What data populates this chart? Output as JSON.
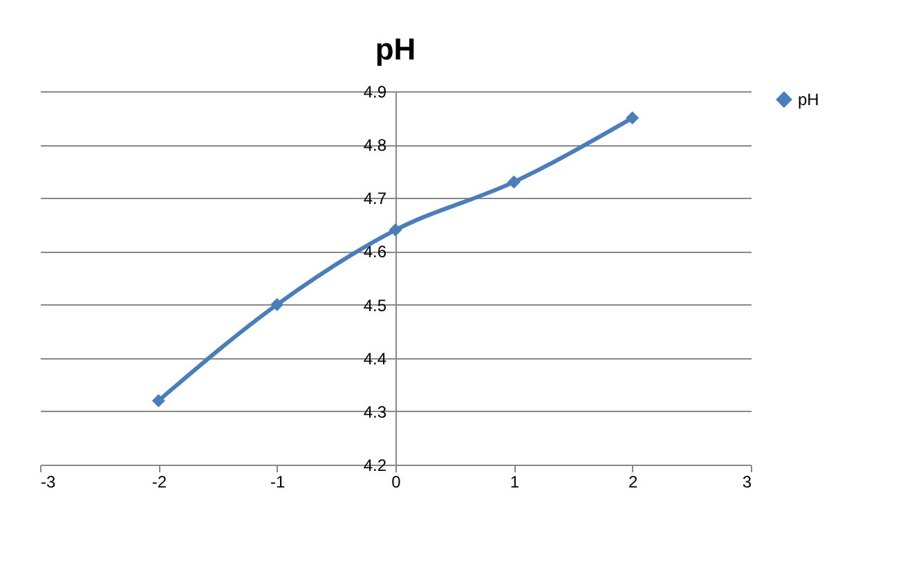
{
  "chart_data": {
    "type": "line",
    "title": "pH",
    "x": [
      -2,
      -1,
      0,
      1,
      2
    ],
    "series": [
      {
        "name": "pH",
        "color": "#4a7ebb",
        "values": [
          4.32,
          4.5,
          4.64,
          4.73,
          4.85
        ]
      }
    ],
    "xlim": [
      -3,
      3
    ],
    "xticks": [
      -3,
      -2,
      -1,
      0,
      1,
      2,
      3
    ],
    "ylim": [
      4.2,
      4.9
    ],
    "yticks": [
      4.2,
      4.3,
      4.4,
      4.5,
      4.6,
      4.7,
      4.8,
      4.9
    ],
    "grid": "y",
    "legend": "right",
    "marker": "diamond",
    "line_style": "solid"
  }
}
